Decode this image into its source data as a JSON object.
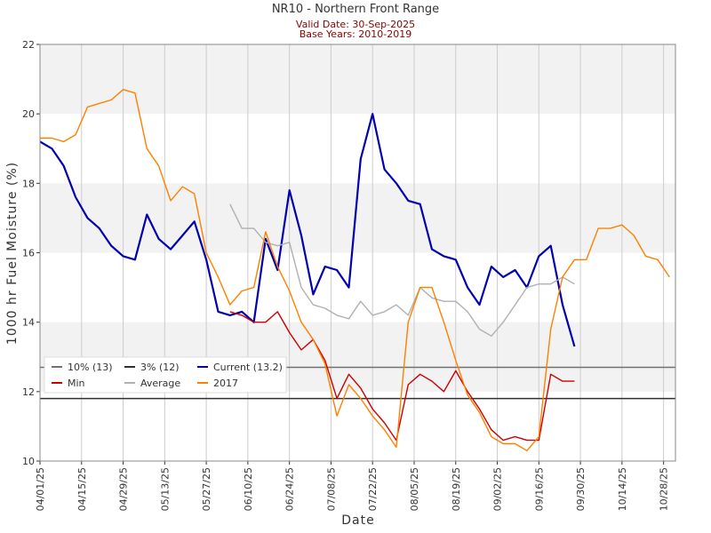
{
  "chart_data": {
    "type": "line",
    "title": "NR10 - Northern Front Range",
    "subtitle": [
      "Valid Date: 30-Sep-2025",
      "Base Years: 2010-2019"
    ],
    "x_label": "Date",
    "y_label": "1000 hr Fuel Moisture (%)",
    "x": [
      "04/01/25",
      "04/05/25",
      "04/09/25",
      "04/13/25",
      "04/17/25",
      "04/21/25",
      "04/25/25",
      "04/29/25",
      "05/03/25",
      "05/07/25",
      "05/11/25",
      "05/15/25",
      "05/19/25",
      "05/23/25",
      "05/27/25",
      "05/31/25",
      "06/04/25",
      "06/08/25",
      "06/12/25",
      "06/16/25",
      "06/20/25",
      "06/24/25",
      "06/28/25",
      "07/02/25",
      "07/06/25",
      "07/10/25",
      "07/14/25",
      "07/18/25",
      "07/22/25",
      "07/26/25",
      "07/30/25",
      "08/03/25",
      "08/07/25",
      "08/11/25",
      "08/15/25",
      "08/19/25",
      "08/23/25",
      "08/27/25",
      "08/31/25",
      "09/04/25",
      "09/08/25",
      "09/12/25",
      "09/16/25",
      "09/20/25",
      "09/24/25",
      "09/28/25",
      "10/02/25",
      "10/06/25",
      "10/10/25",
      "10/14/25",
      "10/18/25",
      "10/22/25",
      "10/26/25",
      "10/30/25"
    ],
    "series": [
      {
        "name": "Current (13.2)",
        "color": "#0000b0",
        "width": 2.2,
        "values": [
          19.2,
          19.0,
          18.5,
          17.6,
          17.0,
          16.7,
          16.2,
          15.9,
          15.8,
          17.1,
          16.4,
          16.1,
          16.5,
          16.9,
          15.8,
          14.3,
          14.2,
          14.3,
          14.0,
          16.4,
          15.5,
          17.8,
          16.5,
          14.8,
          15.6,
          15.5,
          15.0,
          18.7,
          20.0,
          18.4,
          18.0,
          17.5,
          17.4,
          16.1,
          15.9,
          15.8,
          15.0,
          14.5,
          15.6,
          15.3,
          15.5,
          15.0,
          15.9,
          16.2,
          14.5,
          13.3,
          null,
          null,
          null,
          null,
          null,
          null,
          null,
          null
        ]
      },
      {
        "name": "Min",
        "color": "#cc0000",
        "width": 1.4,
        "values": [
          null,
          null,
          null,
          null,
          null,
          null,
          null,
          null,
          null,
          null,
          null,
          null,
          null,
          null,
          null,
          null,
          14.3,
          14.2,
          14.0,
          14.0,
          14.3,
          13.7,
          13.2,
          13.5,
          12.9,
          11.8,
          12.5,
          12.1,
          11.5,
          11.1,
          10.6,
          12.2,
          12.5,
          12.3,
          12.0,
          12.6,
          12.0,
          11.5,
          10.9,
          10.6,
          10.7,
          10.6,
          10.6,
          12.5,
          12.3,
          12.3,
          null,
          null,
          null,
          null,
          null,
          null,
          null,
          null
        ]
      },
      {
        "name": "Average",
        "color": "#b0b0b0",
        "width": 1.4,
        "values": [
          null,
          null,
          null,
          null,
          null,
          null,
          null,
          null,
          null,
          null,
          null,
          null,
          null,
          null,
          null,
          null,
          17.4,
          16.7,
          16.7,
          16.3,
          16.2,
          16.3,
          15.0,
          14.5,
          14.4,
          14.2,
          14.1,
          14.6,
          14.2,
          14.3,
          14.5,
          14.2,
          15.0,
          14.7,
          14.6,
          14.6,
          14.3,
          13.8,
          13.6,
          14.0,
          14.5,
          15.0,
          15.1,
          15.1,
          15.3,
          15.1,
          null,
          null,
          null,
          null,
          null,
          null,
          null,
          null
        ]
      },
      {
        "name": "2017",
        "color": "#ff8000",
        "width": 1.4,
        "values": [
          19.3,
          19.3,
          19.2,
          19.4,
          20.2,
          20.3,
          20.4,
          20.7,
          20.6,
          19.0,
          18.5,
          17.5,
          17.9,
          17.7,
          16.0,
          15.3,
          14.5,
          14.9,
          15.0,
          16.6,
          15.6,
          14.9,
          14.0,
          13.5,
          12.8,
          11.3,
          12.2,
          11.8,
          11.3,
          10.9,
          10.4,
          14.0,
          15.0,
          15.0,
          14.0,
          12.9,
          11.9,
          11.4,
          10.7,
          10.5,
          10.5,
          10.3,
          10.7,
          13.8,
          15.3,
          15.8,
          15.8,
          16.7,
          16.7,
          16.8,
          16.5,
          15.9,
          15.8,
          15.3
        ]
      }
    ],
    "reference_lines": [
      {
        "name": "10% (13)",
        "value": 12.7,
        "color": "#707070"
      },
      {
        "name": "3% (12)",
        "value": 11.8,
        "color": "#303030"
      }
    ],
    "legend_order": [
      0,
      1,
      "s0",
      "s1",
      "s2",
      "s3"
    ],
    "xlim": [
      "04/01/25",
      "11/01/25"
    ],
    "xticks": [
      "04/01/25",
      "04/15/25",
      "04/29/25",
      "05/13/25",
      "05/27/25",
      "06/10/25",
      "06/24/25",
      "07/08/25",
      "07/22/25",
      "08/05/25",
      "08/19/25",
      "09/02/25",
      "09/16/25",
      "09/30/25",
      "10/14/25",
      "10/28/25"
    ],
    "ylim": [
      10,
      22
    ],
    "yticks": [
      10,
      12,
      14,
      16,
      18,
      20,
      22
    ],
    "grid": true
  }
}
